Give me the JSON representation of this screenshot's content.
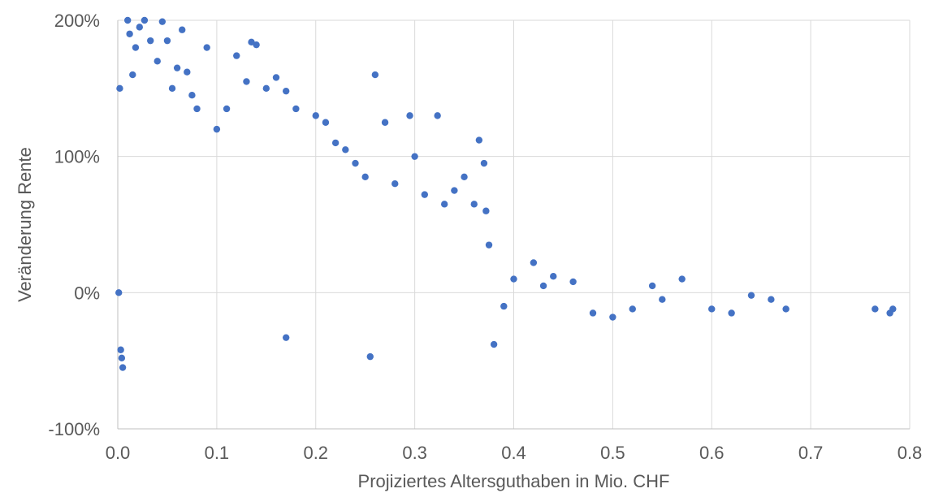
{
  "chart_data": {
    "type": "scatter",
    "xlabel": "Projiziertes Altersguthaben in Mio. CHF",
    "ylabel": "Veränderung Rente",
    "xlim": [
      0,
      0.8
    ],
    "ylim": [
      -1,
      2
    ],
    "x_ticks": [
      0.0,
      0.1,
      0.2,
      0.3,
      0.4,
      0.5,
      0.6,
      0.7,
      0.8
    ],
    "x_tick_labels": [
      "0.0",
      "0.1",
      "0.2",
      "0.3",
      "0.4",
      "0.5",
      "0.6",
      "0.7",
      "0.8"
    ],
    "y_ticks": [
      -1,
      0,
      1,
      2
    ],
    "y_tick_labels": [
      "-100%",
      "0%",
      "100%",
      "200%"
    ],
    "grid": true,
    "legend": "none",
    "marker_color": "#4472c4",
    "series": [
      {
        "points": [
          [
            0.002,
            1.5
          ],
          [
            0.001,
            0.0
          ],
          [
            0.003,
            -0.42
          ],
          [
            0.005,
            -0.55
          ],
          [
            0.004,
            -0.48
          ],
          [
            0.01,
            2.0
          ],
          [
            0.012,
            1.9
          ],
          [
            0.015,
            1.6
          ],
          [
            0.018,
            1.8
          ],
          [
            0.022,
            1.95
          ],
          [
            0.027,
            2.0
          ],
          [
            0.033,
            1.85
          ],
          [
            0.04,
            1.7
          ],
          [
            0.045,
            1.99
          ],
          [
            0.05,
            1.85
          ],
          [
            0.055,
            1.5
          ],
          [
            0.06,
            1.65
          ],
          [
            0.065,
            1.93
          ],
          [
            0.07,
            1.62
          ],
          [
            0.075,
            1.45
          ],
          [
            0.08,
            1.35
          ],
          [
            0.09,
            1.8
          ],
          [
            0.1,
            1.2
          ],
          [
            0.11,
            1.35
          ],
          [
            0.12,
            1.74
          ],
          [
            0.13,
            1.55
          ],
          [
            0.135,
            1.84
          ],
          [
            0.14,
            1.82
          ],
          [
            0.15,
            1.5
          ],
          [
            0.16,
            1.58
          ],
          [
            0.17,
            1.48
          ],
          [
            0.18,
            1.35
          ],
          [
            0.2,
            1.3
          ],
          [
            0.21,
            1.25
          ],
          [
            0.22,
            1.1
          ],
          [
            0.23,
            1.05
          ],
          [
            0.24,
            0.95
          ],
          [
            0.25,
            0.85
          ],
          [
            0.26,
            1.6
          ],
          [
            0.27,
            1.25
          ],
          [
            0.28,
            0.8
          ],
          [
            0.295,
            1.3
          ],
          [
            0.3,
            1.0
          ],
          [
            0.31,
            0.72
          ],
          [
            0.323,
            1.3
          ],
          [
            0.33,
            0.65
          ],
          [
            0.34,
            0.75
          ],
          [
            0.35,
            0.85
          ],
          [
            0.36,
            0.65
          ],
          [
            0.365,
            1.12
          ],
          [
            0.37,
            0.95
          ],
          [
            0.372,
            0.6
          ],
          [
            0.375,
            0.35
          ],
          [
            0.38,
            -0.38
          ],
          [
            0.39,
            -0.1
          ],
          [
            0.4,
            0.1
          ],
          [
            0.42,
            0.22
          ],
          [
            0.43,
            0.05
          ],
          [
            0.44,
            0.12
          ],
          [
            0.46,
            0.08
          ],
          [
            0.48,
            -0.15
          ],
          [
            0.5,
            -0.18
          ],
          [
            0.52,
            -0.12
          ],
          [
            0.54,
            0.05
          ],
          [
            0.55,
            -0.05
          ],
          [
            0.57,
            0.1
          ],
          [
            0.6,
            -0.12
          ],
          [
            0.62,
            -0.15
          ],
          [
            0.64,
            -0.02
          ],
          [
            0.66,
            -0.05
          ],
          [
            0.675,
            -0.12
          ],
          [
            0.765,
            -0.12
          ],
          [
            0.78,
            -0.15
          ],
          [
            0.783,
            -0.12
          ],
          [
            0.255,
            -0.47
          ],
          [
            0.17,
            -0.33
          ]
        ]
      }
    ]
  }
}
